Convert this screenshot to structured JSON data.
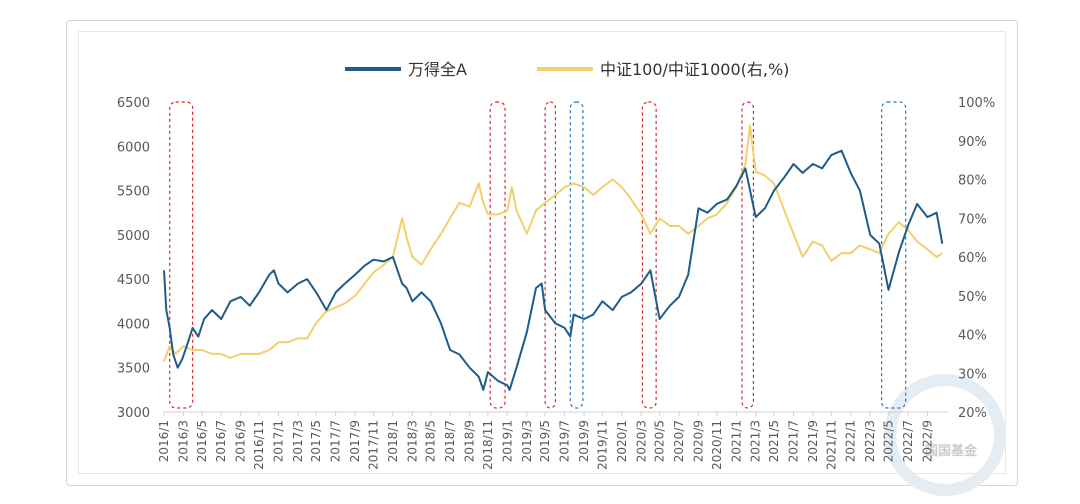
{
  "chart_data": {
    "type": "line",
    "title": "",
    "series": [
      {
        "name": "万得全A",
        "axis": "left",
        "color": "#1f5c8a",
        "points": [
          [
            2016.0,
            4600
          ],
          [
            2016.02,
            4150
          ],
          [
            2016.05,
            3950
          ],
          [
            2016.08,
            3650
          ],
          [
            2016.12,
            3500
          ],
          [
            2016.16,
            3600
          ],
          [
            2016.2,
            3750
          ],
          [
            2016.25,
            3950
          ],
          [
            2016.3,
            3850
          ],
          [
            2016.35,
            4050
          ],
          [
            2016.42,
            4150
          ],
          [
            2016.5,
            4050
          ],
          [
            2016.58,
            4250
          ],
          [
            2016.67,
            4300
          ],
          [
            2016.75,
            4200
          ],
          [
            2016.83,
            4350
          ],
          [
            2016.92,
            4550
          ],
          [
            2016.96,
            4600
          ],
          [
            2017.0,
            4450
          ],
          [
            2017.08,
            4350
          ],
          [
            2017.17,
            4450
          ],
          [
            2017.25,
            4500
          ],
          [
            2017.33,
            4350
          ],
          [
            2017.42,
            4150
          ],
          [
            2017.5,
            4350
          ],
          [
            2017.58,
            4450
          ],
          [
            2017.67,
            4550
          ],
          [
            2017.75,
            4650
          ],
          [
            2017.83,
            4720
          ],
          [
            2017.92,
            4700
          ],
          [
            2018.0,
            4750
          ],
          [
            2018.04,
            4600
          ],
          [
            2018.08,
            4450
          ],
          [
            2018.12,
            4400
          ],
          [
            2018.17,
            4250
          ],
          [
            2018.25,
            4350
          ],
          [
            2018.33,
            4250
          ],
          [
            2018.42,
            4000
          ],
          [
            2018.5,
            3700
          ],
          [
            2018.58,
            3650
          ],
          [
            2018.67,
            3500
          ],
          [
            2018.75,
            3400
          ],
          [
            2018.79,
            3250
          ],
          [
            2018.83,
            3450
          ],
          [
            2018.92,
            3350
          ],
          [
            2019.0,
            3300
          ],
          [
            2019.02,
            3250
          ],
          [
            2019.08,
            3500
          ],
          [
            2019.17,
            3900
          ],
          [
            2019.25,
            4400
          ],
          [
            2019.3,
            4450
          ],
          [
            2019.33,
            4150
          ],
          [
            2019.42,
            4000
          ],
          [
            2019.5,
            3950
          ],
          [
            2019.55,
            3850
          ],
          [
            2019.58,
            4100
          ],
          [
            2019.67,
            4050
          ],
          [
            2019.75,
            4100
          ],
          [
            2019.83,
            4250
          ],
          [
            2019.92,
            4150
          ],
          [
            2020.0,
            4300
          ],
          [
            2020.08,
            4350
          ],
          [
            2020.17,
            4450
          ],
          [
            2020.25,
            4600
          ],
          [
            2020.33,
            4050
          ],
          [
            2020.42,
            4200
          ],
          [
            2020.5,
            4300
          ],
          [
            2020.58,
            4550
          ],
          [
            2020.67,
            5300
          ],
          [
            2020.75,
            5250
          ],
          [
            2020.83,
            5350
          ],
          [
            2020.92,
            5400
          ],
          [
            2021.0,
            5550
          ],
          [
            2021.08,
            5750
          ],
          [
            2021.17,
            5200
          ],
          [
            2021.25,
            5300
          ],
          [
            2021.33,
            5500
          ],
          [
            2021.42,
            5650
          ],
          [
            2021.5,
            5800
          ],
          [
            2021.58,
            5700
          ],
          [
            2021.67,
            5800
          ],
          [
            2021.75,
            5750
          ],
          [
            2021.83,
            5900
          ],
          [
            2021.92,
            5950
          ],
          [
            2022.0,
            5700
          ],
          [
            2022.08,
            5500
          ],
          [
            2022.17,
            5000
          ],
          [
            2022.25,
            4900
          ],
          [
            2022.33,
            4380
          ],
          [
            2022.42,
            4800
          ],
          [
            2022.5,
            5100
          ],
          [
            2022.58,
            5350
          ],
          [
            2022.67,
            5200
          ],
          [
            2022.75,
            5250
          ],
          [
            2022.8,
            4900
          ]
        ]
      },
      {
        "name": "中证100/中证1000(右,%)",
        "axis": "right",
        "color": "#f2d06b",
        "points": [
          [
            2016.0,
            0.33
          ],
          [
            2016.05,
            0.37
          ],
          [
            2016.1,
            0.35
          ],
          [
            2016.17,
            0.37
          ],
          [
            2016.25,
            0.36
          ],
          [
            2016.33,
            0.36
          ],
          [
            2016.42,
            0.35
          ],
          [
            2016.5,
            0.35
          ],
          [
            2016.58,
            0.34
          ],
          [
            2016.67,
            0.35
          ],
          [
            2016.75,
            0.35
          ],
          [
            2016.83,
            0.35
          ],
          [
            2016.92,
            0.36
          ],
          [
            2017.0,
            0.38
          ],
          [
            2017.08,
            0.38
          ],
          [
            2017.17,
            0.39
          ],
          [
            2017.25,
            0.39
          ],
          [
            2017.33,
            0.43
          ],
          [
            2017.42,
            0.46
          ],
          [
            2017.5,
            0.47
          ],
          [
            2017.58,
            0.48
          ],
          [
            2017.67,
            0.5
          ],
          [
            2017.75,
            0.53
          ],
          [
            2017.83,
            0.56
          ],
          [
            2017.92,
            0.58
          ],
          [
            2018.0,
            0.6
          ],
          [
            2018.08,
            0.7
          ],
          [
            2018.12,
            0.65
          ],
          [
            2018.17,
            0.6
          ],
          [
            2018.25,
            0.58
          ],
          [
            2018.33,
            0.62
          ],
          [
            2018.42,
            0.66
          ],
          [
            2018.5,
            0.7
          ],
          [
            2018.58,
            0.74
          ],
          [
            2018.67,
            0.73
          ],
          [
            2018.75,
            0.79
          ],
          [
            2018.79,
            0.74
          ],
          [
            2018.83,
            0.71
          ],
          [
            2018.92,
            0.71
          ],
          [
            2019.0,
            0.72
          ],
          [
            2019.04,
            0.78
          ],
          [
            2019.08,
            0.72
          ],
          [
            2019.17,
            0.66
          ],
          [
            2019.25,
            0.72
          ],
          [
            2019.33,
            0.74
          ],
          [
            2019.42,
            0.76
          ],
          [
            2019.5,
            0.78
          ],
          [
            2019.58,
            0.79
          ],
          [
            2019.67,
            0.78
          ],
          [
            2019.75,
            0.76
          ],
          [
            2019.83,
            0.78
          ],
          [
            2019.92,
            0.8
          ],
          [
            2020.0,
            0.78
          ],
          [
            2020.08,
            0.75
          ],
          [
            2020.17,
            0.71
          ],
          [
            2020.25,
            0.66
          ],
          [
            2020.33,
            0.7
          ],
          [
            2020.42,
            0.68
          ],
          [
            2020.5,
            0.68
          ],
          [
            2020.58,
            0.66
          ],
          [
            2020.67,
            0.68
          ],
          [
            2020.75,
            0.7
          ],
          [
            2020.83,
            0.71
          ],
          [
            2020.92,
            0.74
          ],
          [
            2021.0,
            0.78
          ],
          [
            2021.08,
            0.84
          ],
          [
            2021.12,
            0.94
          ],
          [
            2021.17,
            0.82
          ],
          [
            2021.25,
            0.81
          ],
          [
            2021.33,
            0.79
          ],
          [
            2021.42,
            0.72
          ],
          [
            2021.5,
            0.66
          ],
          [
            2021.58,
            0.6
          ],
          [
            2021.67,
            0.64
          ],
          [
            2021.75,
            0.63
          ],
          [
            2021.83,
            0.59
          ],
          [
            2021.92,
            0.61
          ],
          [
            2022.0,
            0.61
          ],
          [
            2022.08,
            0.63
          ],
          [
            2022.17,
            0.62
          ],
          [
            2022.25,
            0.61
          ],
          [
            2022.33,
            0.66
          ],
          [
            2022.42,
            0.69
          ],
          [
            2022.5,
            0.67
          ],
          [
            2022.58,
            0.64
          ],
          [
            2022.67,
            0.62
          ],
          [
            2022.75,
            0.6
          ],
          [
            2022.8,
            0.61
          ]
        ]
      }
    ],
    "y_left": {
      "min": 3000,
      "max": 6500,
      "ticks": [
        "3000",
        "3500",
        "4000",
        "4500",
        "5000",
        "5500",
        "6000",
        "6500"
      ]
    },
    "y_right": {
      "min": 0.2,
      "max": 1.0,
      "ticks": [
        "20%",
        "30%",
        "40%",
        "50%",
        "60%",
        "70%",
        "80%",
        "90%",
        "100%"
      ]
    },
    "x_range": [
      2016.0,
      2022.85
    ],
    "x_ticks": [
      {
        "label": "2016/1",
        "x": 2016.0
      },
      {
        "label": "2016/3",
        "x": 2016.17
      },
      {
        "label": "2016/5",
        "x": 2016.33
      },
      {
        "label": "2016/7",
        "x": 2016.5
      },
      {
        "label": "2016/9",
        "x": 2016.67
      },
      {
        "label": "2016/11",
        "x": 2016.83
      },
      {
        "label": "2017/1",
        "x": 2017.0
      },
      {
        "label": "2017/3",
        "x": 2017.17
      },
      {
        "label": "2017/5",
        "x": 2017.33
      },
      {
        "label": "2017/7",
        "x": 2017.5
      },
      {
        "label": "2017/9",
        "x": 2017.67
      },
      {
        "label": "2017/11",
        "x": 2017.83
      },
      {
        "label": "2018/1",
        "x": 2018.0
      },
      {
        "label": "2018/3",
        "x": 2018.17
      },
      {
        "label": "2018/5",
        "x": 2018.33
      },
      {
        "label": "2018/7",
        "x": 2018.5
      },
      {
        "label": "2018/9",
        "x": 2018.67
      },
      {
        "label": "2018/11",
        "x": 2018.83
      },
      {
        "label": "2019/1",
        "x": 2019.0
      },
      {
        "label": "2019/3",
        "x": 2019.17
      },
      {
        "label": "2019/5",
        "x": 2019.33
      },
      {
        "label": "2019/7",
        "x": 2019.5
      },
      {
        "label": "2019/9",
        "x": 2019.67
      },
      {
        "label": "2019/11",
        "x": 2019.83
      },
      {
        "label": "2020/1",
        "x": 2020.0
      },
      {
        "label": "2020/3",
        "x": 2020.17
      },
      {
        "label": "2020/5",
        "x": 2020.33
      },
      {
        "label": "2020/7",
        "x": 2020.5
      },
      {
        "label": "2020/9",
        "x": 2020.67
      },
      {
        "label": "2020/11",
        "x": 2020.83
      },
      {
        "label": "2021/1",
        "x": 2021.0
      },
      {
        "label": "2021/3",
        "x": 2021.17
      },
      {
        "label": "2021/5",
        "x": 2021.33
      },
      {
        "label": "2021/7",
        "x": 2021.5
      },
      {
        "label": "2021/9",
        "x": 2021.67
      },
      {
        "label": "2021/11",
        "x": 2021.83
      },
      {
        "label": "2022/1",
        "x": 2022.0
      },
      {
        "label": "2022/3",
        "x": 2022.17
      },
      {
        "label": "2022/5",
        "x": 2022.33
      },
      {
        "label": "2022/7",
        "x": 2022.5
      },
      {
        "label": "2022/9",
        "x": 2022.67
      }
    ],
    "highlight_windows": [
      {
        "start": 2016.05,
        "end": 2016.25,
        "color": "#d9262c"
      },
      {
        "start": 2018.85,
        "end": 2018.98,
        "color": "#d9262c"
      },
      {
        "start": 2019.33,
        "end": 2019.42,
        "color": "#d9262c"
      },
      {
        "start": 2019.55,
        "end": 2019.66,
        "color": "#2e75b6"
      },
      {
        "start": 2020.18,
        "end": 2020.3,
        "color": "#d9262c"
      },
      {
        "start": 2021.05,
        "end": 2021.15,
        "color": "#d9262c"
      },
      {
        "start": 2022.27,
        "end": 2022.48,
        "color": "#2e75b6"
      }
    ],
    "legend_position": "top"
  },
  "watermark_text": "国国基金"
}
